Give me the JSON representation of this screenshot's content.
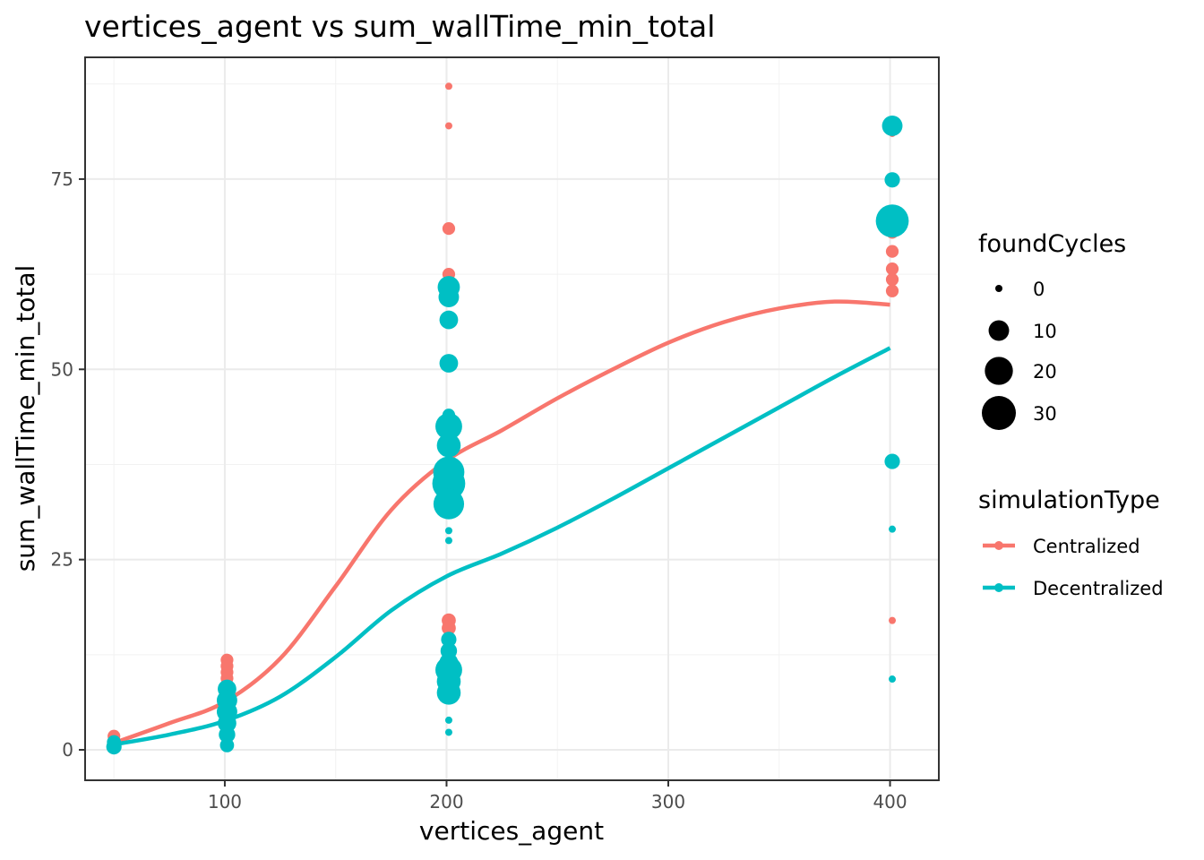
{
  "chart_data": {
    "type": "scatter",
    "title": "vertices_agent  vs  sum_wallTime_min_total",
    "xlabel": "vertices_agent",
    "ylabel": "sum_wallTime_min_total",
    "xlim": [
      37,
      422
    ],
    "ylim": [
      -4,
      91
    ],
    "x_ticks": [
      100,
      200,
      300,
      400
    ],
    "y_ticks": [
      0,
      25,
      50,
      75
    ],
    "x_tick_labels": [
      "100",
      "200",
      "300",
      "400"
    ],
    "y_tick_labels": [
      "0",
      "25",
      "50",
      "75"
    ],
    "grid": true,
    "colors": {
      "Centralized": "#F8766D",
      "Decentralized": "#00BFC4"
    },
    "size_legend": {
      "title": "foundCycles",
      "entries": [
        {
          "label": "0",
          "value": 0
        },
        {
          "label": "10",
          "value": 10
        },
        {
          "label": "20",
          "value": 20
        },
        {
          "label": "30",
          "value": 30
        }
      ]
    },
    "color_legend": {
      "title": "simulationType",
      "entries": [
        "Centralized",
        "Decentralized"
      ],
      "placement": "right"
    },
    "series": [
      {
        "name": "Centralized",
        "points": [
          {
            "x": 50,
            "y": 1.8,
            "size": 3
          },
          {
            "x": 50,
            "y": 1.2,
            "size": 3
          },
          {
            "x": 101,
            "y": 11.8,
            "size": 3
          },
          {
            "x": 101,
            "y": 11.0,
            "size": 3
          },
          {
            "x": 101,
            "y": 10.2,
            "size": 3
          },
          {
            "x": 101,
            "y": 9.4,
            "size": 3
          },
          {
            "x": 101,
            "y": 8.6,
            "size": 3
          },
          {
            "x": 101,
            "y": 7.2,
            "size": 4
          },
          {
            "x": 101,
            "y": 6.5,
            "size": 3
          },
          {
            "x": 201,
            "y": 87.2,
            "size": 0
          },
          {
            "x": 201,
            "y": 82.0,
            "size": 0
          },
          {
            "x": 201,
            "y": 68.5,
            "size": 3
          },
          {
            "x": 201,
            "y": 62.5,
            "size": 3
          },
          {
            "x": 201,
            "y": 61.5,
            "size": 3
          },
          {
            "x": 201,
            "y": 60.5,
            "size": 3
          },
          {
            "x": 201,
            "y": 59.5,
            "size": 3
          },
          {
            "x": 201,
            "y": 17.0,
            "size": 4
          },
          {
            "x": 201,
            "y": 16.0,
            "size": 4
          },
          {
            "x": 201,
            "y": 10.2,
            "size": 3
          },
          {
            "x": 401,
            "y": 81.0,
            "size": 0
          },
          {
            "x": 401,
            "y": 68.0,
            "size": 3
          },
          {
            "x": 401,
            "y": 65.5,
            "size": 3
          },
          {
            "x": 401,
            "y": 63.2,
            "size": 3
          },
          {
            "x": 401,
            "y": 61.8,
            "size": 3
          },
          {
            "x": 401,
            "y": 60.3,
            "size": 3
          },
          {
            "x": 401,
            "y": 17.0,
            "size": 0
          }
        ],
        "smooth": [
          {
            "x": 50,
            "y": 0.9
          },
          {
            "x": 75,
            "y": 3.5
          },
          {
            "x": 100,
            "y": 6.3
          },
          {
            "x": 125,
            "y": 12.0
          },
          {
            "x": 150,
            "y": 21.5
          },
          {
            "x": 175,
            "y": 31.5
          },
          {
            "x": 200,
            "y": 38.0
          },
          {
            "x": 225,
            "y": 42.0
          },
          {
            "x": 250,
            "y": 46.2
          },
          {
            "x": 275,
            "y": 50.0
          },
          {
            "x": 300,
            "y": 53.5
          },
          {
            "x": 325,
            "y": 56.2
          },
          {
            "x": 350,
            "y": 58.0
          },
          {
            "x": 375,
            "y": 58.9
          },
          {
            "x": 400,
            "y": 58.5
          }
        ]
      },
      {
        "name": "Decentralized",
        "points": [
          {
            "x": 50,
            "y": 0.4,
            "size": 5
          },
          {
            "x": 50,
            "y": 1.0,
            "size": 4
          },
          {
            "x": 101,
            "y": 8.0,
            "size": 8
          },
          {
            "x": 101,
            "y": 6.5,
            "size": 10
          },
          {
            "x": 101,
            "y": 5.0,
            "size": 10
          },
          {
            "x": 101,
            "y": 3.5,
            "size": 8
          },
          {
            "x": 101,
            "y": 2.0,
            "size": 6
          },
          {
            "x": 101,
            "y": 0.6,
            "size": 4
          },
          {
            "x": 201,
            "y": 60.8,
            "size": 12
          },
          {
            "x": 201,
            "y": 59.5,
            "size": 10
          },
          {
            "x": 201,
            "y": 56.5,
            "size": 8
          },
          {
            "x": 201,
            "y": 50.8,
            "size": 8
          },
          {
            "x": 201,
            "y": 44.0,
            "size": 3
          },
          {
            "x": 201,
            "y": 42.5,
            "size": 18
          },
          {
            "x": 201,
            "y": 40.0,
            "size": 14
          },
          {
            "x": 201,
            "y": 36.5,
            "size": 25
          },
          {
            "x": 201,
            "y": 35.0,
            "size": 28
          },
          {
            "x": 201,
            "y": 32.3,
            "size": 24
          },
          {
            "x": 201,
            "y": 28.8,
            "size": 0
          },
          {
            "x": 201,
            "y": 27.5,
            "size": 0
          },
          {
            "x": 201,
            "y": 14.5,
            "size": 5
          },
          {
            "x": 201,
            "y": 13.0,
            "size": 6
          },
          {
            "x": 201,
            "y": 11.5,
            "size": 8
          },
          {
            "x": 201,
            "y": 10.5,
            "size": 18
          },
          {
            "x": 201,
            "y": 9.0,
            "size": 14
          },
          {
            "x": 201,
            "y": 7.5,
            "size": 14
          },
          {
            "x": 201,
            "y": 3.9,
            "size": 0
          },
          {
            "x": 201,
            "y": 2.3,
            "size": 0
          },
          {
            "x": 401,
            "y": 82.0,
            "size": 10
          },
          {
            "x": 401,
            "y": 74.9,
            "size": 5
          },
          {
            "x": 401,
            "y": 69.5,
            "size": 28
          },
          {
            "x": 401,
            "y": 37.9,
            "size": 5
          },
          {
            "x": 401,
            "y": 29.0,
            "size": 0
          },
          {
            "x": 401,
            "y": 9.3,
            "size": 0
          }
        ],
        "smooth": [
          {
            "x": 50,
            "y": 0.7
          },
          {
            "x": 75,
            "y": 2.0
          },
          {
            "x": 100,
            "y": 3.8
          },
          {
            "x": 125,
            "y": 7.0
          },
          {
            "x": 150,
            "y": 12.2
          },
          {
            "x": 175,
            "y": 18.3
          },
          {
            "x": 200,
            "y": 22.8
          },
          {
            "x": 225,
            "y": 25.8
          },
          {
            "x": 250,
            "y": 29.2
          },
          {
            "x": 275,
            "y": 33.0
          },
          {
            "x": 300,
            "y": 37.0
          },
          {
            "x": 325,
            "y": 41.0
          },
          {
            "x": 350,
            "y": 45.0
          },
          {
            "x": 375,
            "y": 49.0
          },
          {
            "x": 400,
            "y": 52.8
          }
        ]
      }
    ]
  }
}
